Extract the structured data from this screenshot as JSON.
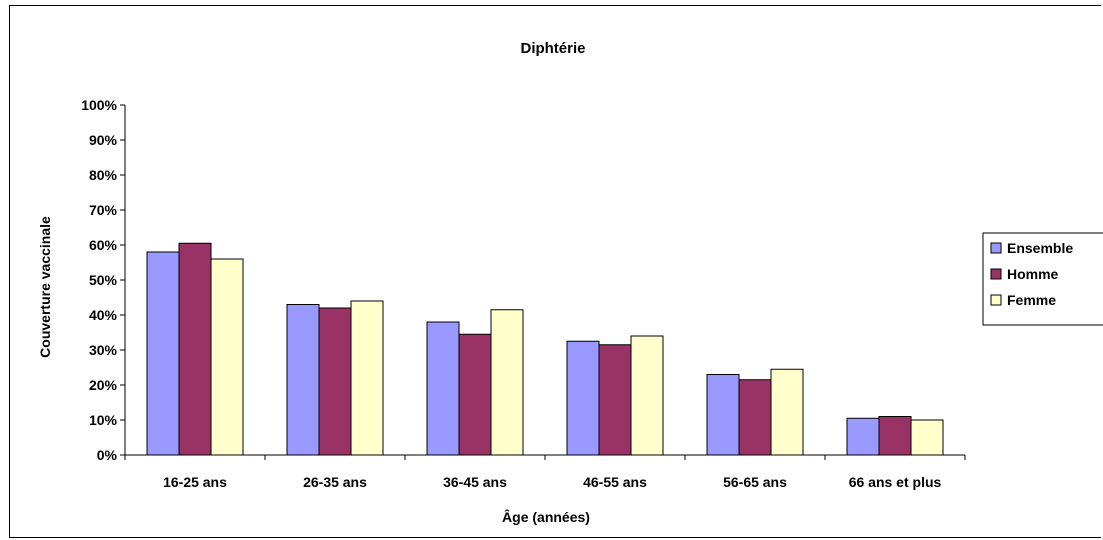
{
  "chart_data": {
    "type": "bar",
    "title": "Diphtérie",
    "xlabel": "Âge (années)",
    "ylabel": "Couverture vaccinale",
    "categories": [
      "16-25 ans",
      "26-35 ans",
      "36-45 ans",
      "46-55 ans",
      "56-65 ans",
      "66 ans et plus"
    ],
    "series": [
      {
        "name": "Ensemble",
        "color": "#9999ff",
        "values": [
          58,
          43,
          38,
          32.5,
          23,
          10.5
        ]
      },
      {
        "name": "Homme",
        "color": "#993366",
        "values": [
          60.5,
          42,
          34.5,
          31.5,
          21.5,
          11
        ]
      },
      {
        "name": "Femme",
        "color": "#ffffcc",
        "values": [
          56,
          44,
          41.5,
          34,
          24.5,
          10
        ]
      }
    ],
    "ylim": [
      0,
      100
    ],
    "yticks": [
      "0%",
      "10%",
      "20%",
      "30%",
      "40%",
      "50%",
      "60%",
      "70%",
      "80%",
      "90%",
      "100%"
    ],
    "grid": false,
    "legend_position": "right"
  }
}
